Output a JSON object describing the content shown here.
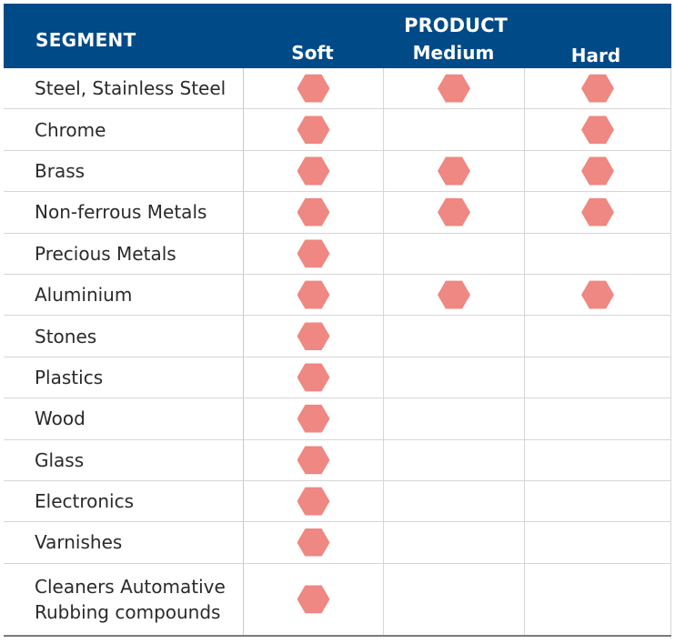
{
  "header": {
    "segment_label": "SEGMENT",
    "product_label": "PRODUCT",
    "columns": [
      "Soft",
      "Medium",
      "Hard"
    ]
  },
  "marker_color": "#ef8782",
  "marker_icon": "hexagon-icon",
  "rows": [
    {
      "segment": "Steel, Stainless Steel",
      "soft": true,
      "medium": true,
      "hard": true
    },
    {
      "segment": "Chrome",
      "soft": true,
      "medium": false,
      "hard": true
    },
    {
      "segment": "Brass",
      "soft": true,
      "medium": true,
      "hard": true
    },
    {
      "segment": "Non-ferrous Metals",
      "soft": true,
      "medium": true,
      "hard": true
    },
    {
      "segment": "Precious Metals",
      "soft": true,
      "medium": false,
      "hard": false
    },
    {
      "segment": "Aluminium",
      "soft": true,
      "medium": true,
      "hard": true
    },
    {
      "segment": "Stones",
      "soft": true,
      "medium": false,
      "hard": false
    },
    {
      "segment": "Plastics",
      "soft": true,
      "medium": false,
      "hard": false
    },
    {
      "segment": "Wood",
      "soft": true,
      "medium": false,
      "hard": false
    },
    {
      "segment": "Glass",
      "soft": true,
      "medium": false,
      "hard": false
    },
    {
      "segment": "Electronics",
      "soft": true,
      "medium": false,
      "hard": false
    },
    {
      "segment": "Varnishes",
      "soft": true,
      "medium": false,
      "hard": false
    },
    {
      "segment": "Cleaners Automative\nRubbing compounds",
      "soft": true,
      "medium": false,
      "hard": false
    }
  ]
}
